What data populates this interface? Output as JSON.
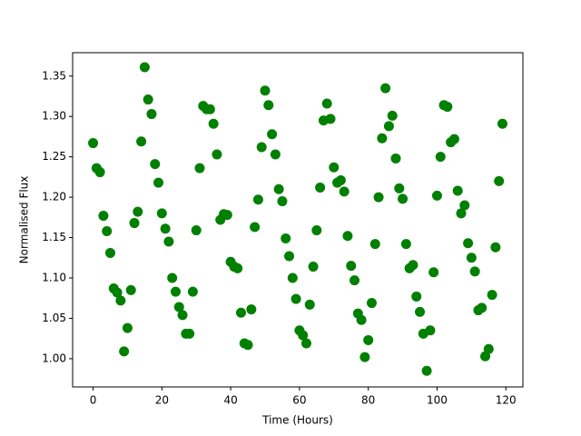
{
  "chart_data": {
    "type": "scatter",
    "x_label": "Time (Hours)",
    "y_label": "Normalised Flux",
    "color": "#008000",
    "x": [
      0,
      1,
      2,
      3,
      4,
      5,
      6,
      7,
      8,
      9,
      10,
      11,
      12,
      13,
      14,
      15,
      16,
      17,
      18,
      19,
      20,
      21,
      22,
      23,
      24,
      25,
      26,
      27,
      28,
      29,
      30,
      31,
      32,
      33,
      34,
      35,
      36,
      37,
      38,
      39,
      40,
      41,
      42,
      43,
      44,
      45,
      46,
      47,
      48,
      49,
      50,
      51,
      52,
      53,
      54,
      55,
      56,
      57,
      58,
      59,
      60,
      61,
      62,
      63,
      64,
      65,
      66,
      67,
      68,
      69,
      70,
      71,
      72,
      73,
      74,
      75,
      76,
      77,
      78,
      79,
      80,
      81,
      82,
      83,
      84,
      85,
      86,
      87,
      88,
      89,
      90,
      91,
      92,
      93,
      94,
      95,
      96,
      97,
      98,
      99,
      100,
      101,
      102,
      103,
      104,
      105,
      106,
      107,
      108,
      109,
      110,
      111,
      112,
      113,
      114,
      115,
      116,
      117,
      118,
      119
    ],
    "values": [
      1.267,
      1.236,
      1.231,
      1.177,
      1.158,
      1.131,
      1.087,
      1.082,
      1.072,
      1.009,
      1.038,
      1.085,
      1.168,
      1.182,
      1.269,
      1.361,
      1.321,
      1.303,
      1.241,
      1.218,
      1.18,
      1.161,
      1.145,
      1.1,
      1.083,
      1.064,
      1.054,
      1.031,
      1.031,
      1.083,
      1.159,
      1.236,
      1.313,
      1.309,
      1.309,
      1.291,
      1.253,
      1.172,
      1.179,
      1.178,
      1.12,
      1.114,
      1.112,
      1.057,
      1.019,
      1.017,
      1.061,
      1.163,
      1.197,
      1.262,
      1.332,
      1.314,
      1.278,
      1.253,
      1.21,
      1.195,
      1.149,
      1.127,
      1.1,
      1.074,
      1.035,
      1.029,
      1.019,
      1.067,
      1.114,
      1.159,
      1.212,
      1.295,
      1.316,
      1.297,
      1.237,
      1.218,
      1.221,
      1.207,
      1.152,
      1.115,
      1.097,
      1.056,
      1.048,
      1.002,
      1.023,
      1.069,
      1.142,
      1.2,
      1.273,
      1.335,
      1.288,
      1.301,
      1.248,
      1.211,
      1.198,
      1.142,
      1.112,
      1.116,
      1.077,
      1.058,
      1.031,
      0.985,
      1.035,
      1.107,
      1.202,
      1.25,
      1.314,
      1.312,
      1.268,
      1.272,
      1.208,
      1.18,
      1.19,
      1.143,
      1.125,
      1.108,
      1.06,
      1.063,
      1.003,
      1.012,
      1.079,
      1.138,
      1.22,
      1.291
    ],
    "xlim": [
      -5.95,
      124.95
    ],
    "ylim": [
      0.965,
      1.379
    ],
    "xticks": [
      0,
      20,
      40,
      60,
      80,
      100,
      120
    ],
    "yticks": [
      {
        "value": 1.0,
        "label": "1.00"
      },
      {
        "value": 1.05,
        "label": "1.05"
      },
      {
        "value": 1.1,
        "label": "1.10"
      },
      {
        "value": 1.15,
        "label": "1.15"
      },
      {
        "value": 1.2,
        "label": "1.20"
      },
      {
        "value": 1.25,
        "label": "1.25"
      },
      {
        "value": 1.3,
        "label": "1.30"
      },
      {
        "value": 1.35,
        "label": "1.35"
      }
    ]
  }
}
